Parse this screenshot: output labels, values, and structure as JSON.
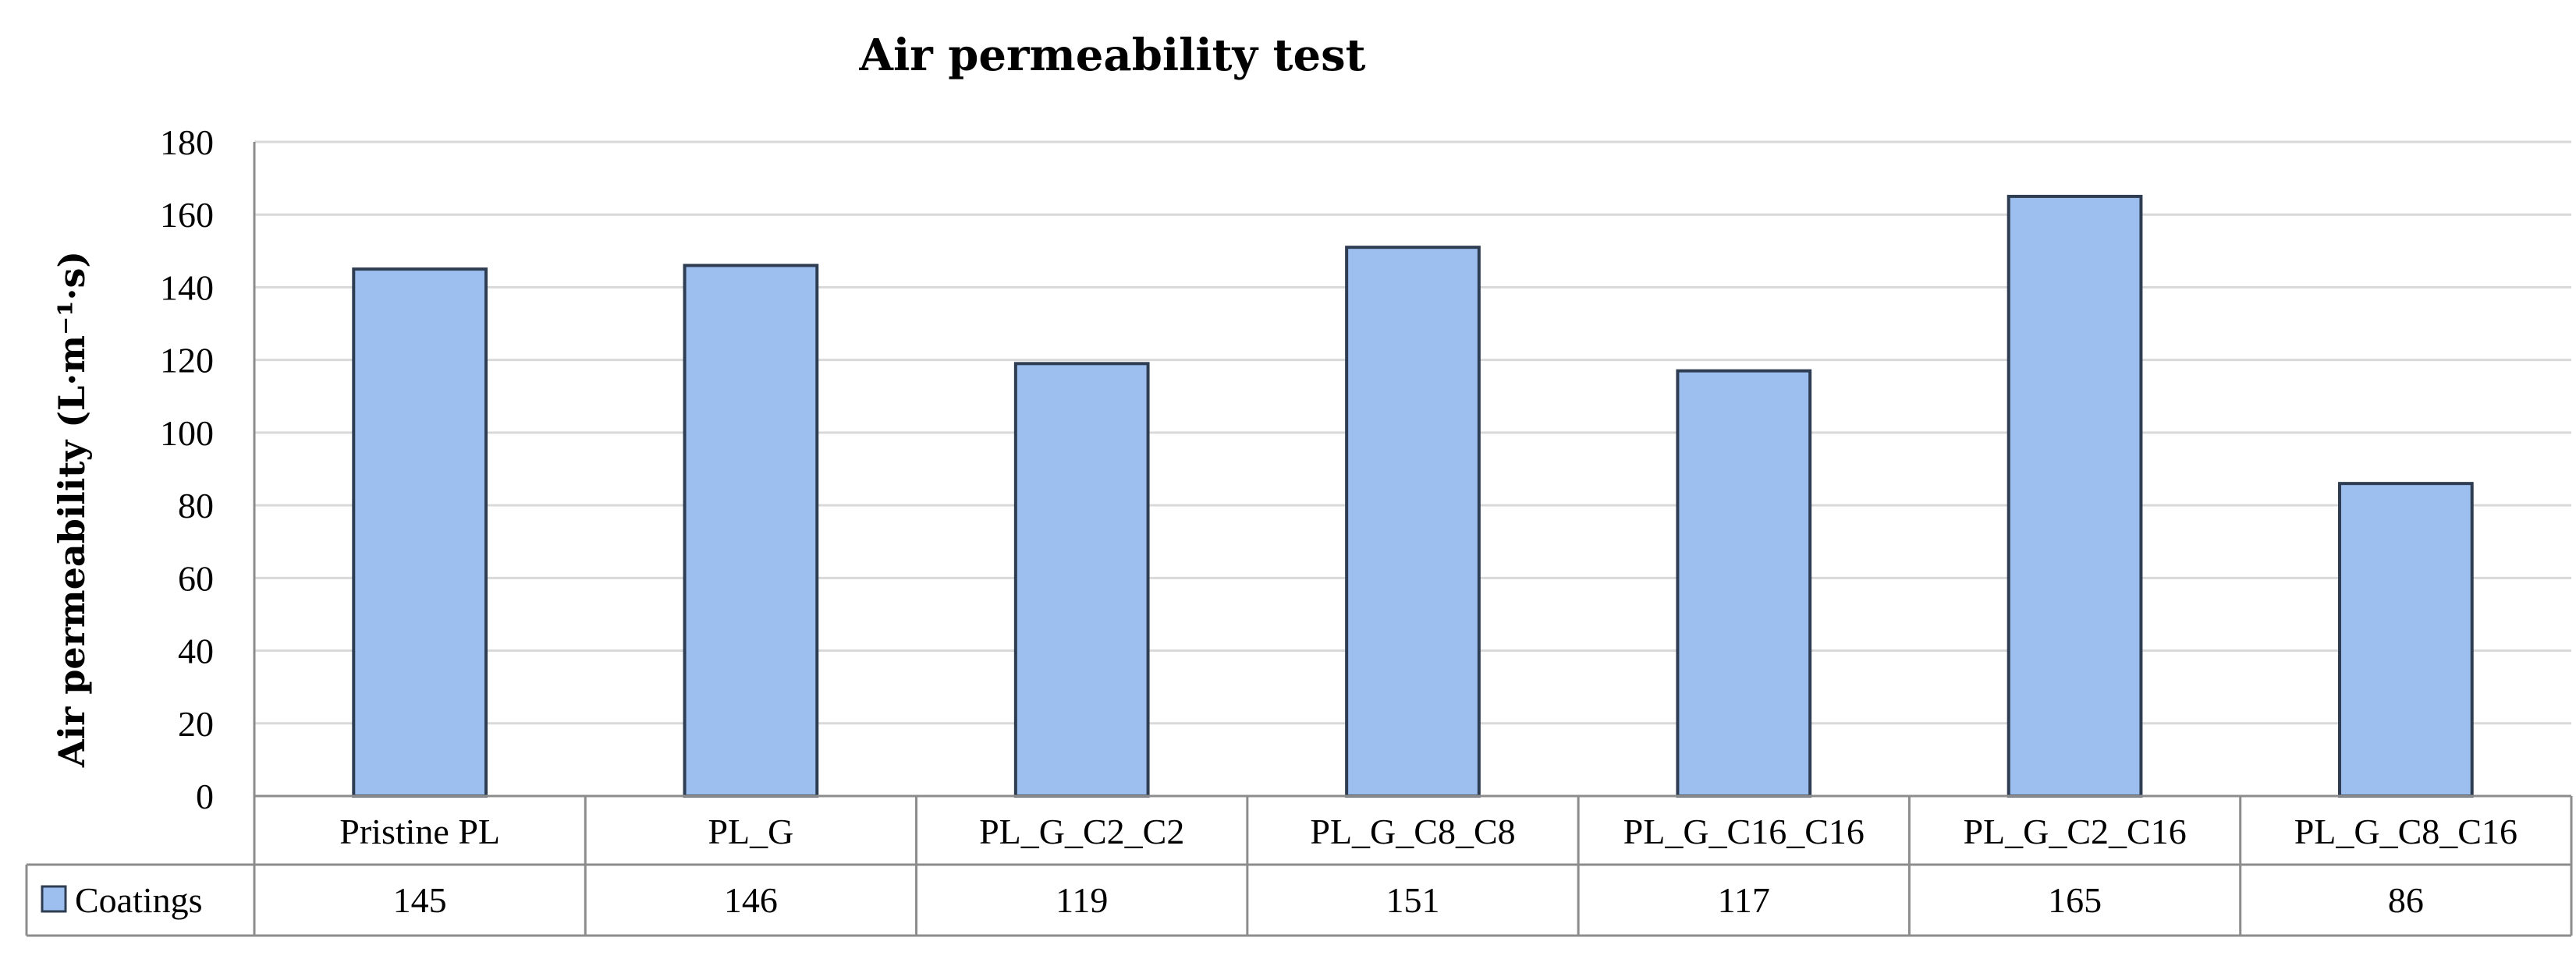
{
  "chart_data": {
    "type": "bar",
    "title": "Air permeability  test",
    "ylabel": "Air permeability (L·m⁻¹·s)",
    "xlabel": "",
    "categories": [
      "Pristine PL",
      "PL_G",
      "PL_G_C2_C2",
      "PL_G_C8_C8",
      "PL_G_C16_C16",
      "PL_G_C2_C16",
      "PL_G_C8_C16"
    ],
    "series": [
      {
        "name": "Coatings",
        "values": [
          145,
          146,
          119,
          151,
          117,
          165,
          86
        ]
      }
    ],
    "value_labels": [
      "145",
      "146",
      "119",
      "151",
      "117",
      "165",
      "86"
    ],
    "ylim": [
      0,
      180
    ],
    "yticks": [
      0,
      20,
      40,
      60,
      80,
      100,
      120,
      140,
      160,
      180
    ],
    "grid": true,
    "legend": "data-table-left",
    "colors": {
      "bar_fill": "#9dbff0",
      "bar_stroke": "#2f3d52",
      "grid": "#d9d9d9",
      "axis": "#8c8c8c"
    }
  }
}
